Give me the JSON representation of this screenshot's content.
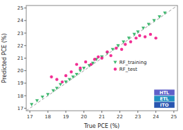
{
  "chart_data": {
    "type": "scatter",
    "x_label": "True PCE (%)",
    "y_label": "Predicted PCE (%)",
    "xlim": [
      16.8,
      25.2
    ],
    "ylim": [
      16.8,
      25.2
    ],
    "xticks": [
      17,
      18,
      19,
      20,
      21,
      22,
      23,
      24,
      25
    ],
    "yticks": [
      17,
      18,
      19,
      20,
      21,
      22,
      23,
      24,
      25
    ],
    "grid": false,
    "legend": "right",
    "annotations": [
      "ITO",
      "ETL",
      "HTL"
    ],
    "series": [
      {
        "name": "RF_training",
        "color": "#40b870",
        "marker": "triangle_down",
        "x": [
          17.1,
          17.4,
          17.7,
          18.0,
          18.3,
          18.5,
          18.7,
          19.0,
          19.2,
          19.4,
          19.6,
          19.8,
          20.0,
          20.3,
          20.5,
          20.7,
          21.0,
          21.3,
          21.6,
          21.9,
          22.2,
          22.5,
          22.8,
          23.0,
          23.3,
          23.6,
          23.9,
          24.2,
          24.5
        ],
        "values": [
          17.3,
          17.6,
          17.9,
          18.1,
          18.4,
          18.6,
          18.9,
          19.1,
          19.3,
          19.5,
          19.7,
          20.0,
          20.2,
          20.4,
          20.6,
          20.9,
          21.1,
          21.4,
          21.7,
          22.0,
          22.3,
          22.6,
          22.9,
          23.1,
          23.4,
          23.7,
          24.0,
          24.3,
          24.6
        ]
      },
      {
        "name": "RF_test",
        "color": "#f01888",
        "marker": "circle",
        "x": [
          18.2,
          18.5,
          18.8,
          19.0,
          19.3,
          19.6,
          19.8,
          20.1,
          20.4,
          20.6,
          20.8,
          21.0,
          21.3,
          21.5,
          21.8,
          22.1,
          22.3,
          22.6,
          22.9,
          23.1,
          23.4,
          23.7,
          24.0
        ],
        "values": [
          19.5,
          19.3,
          19.1,
          19.6,
          19.9,
          20.5,
          20.2,
          20.7,
          20.5,
          20.9,
          21.1,
          21.0,
          21.5,
          21.2,
          21.8,
          21.7,
          22.1,
          22.3,
          22.6,
          22.8,
          22.7,
          22.9,
          22.6
        ]
      }
    ]
  }
}
